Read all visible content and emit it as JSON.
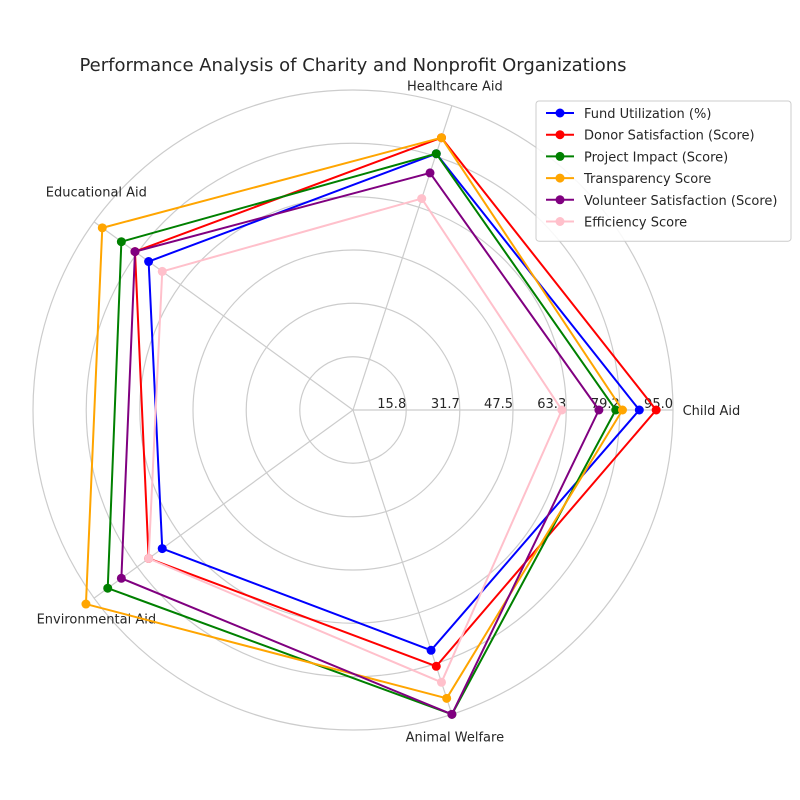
{
  "chart_data": {
    "type": "radar",
    "title": "Performance Analysis of Charity and Nonprofit Organizations",
    "categories": [
      "Child Aid",
      "Healthcare Aid",
      "Educational Aid",
      "Environmental Aid",
      "Animal Welfare"
    ],
    "rlim": [
      0,
      95.0
    ],
    "radial_ticks": [
      15.8,
      31.7,
      47.5,
      63.3,
      79.2,
      95.0
    ],
    "radial_tick_labels": [
      "15.8",
      "31.7",
      "47.5",
      "63.3",
      "79.2",
      "95.0"
    ],
    "grid": true,
    "legend_position": "top-right",
    "series": [
      {
        "name": "Fund Utilization (%)",
        "color": "#0000ff",
        "values": [
          85,
          80,
          75,
          70,
          75
        ]
      },
      {
        "name": "Donor Satisfaction (Score)",
        "color": "#ff0000",
        "values": [
          90,
          85,
          80,
          75,
          80
        ]
      },
      {
        "name": "Project Impact (Score)",
        "color": "#008000",
        "values": [
          78,
          80,
          85,
          90,
          95
        ]
      },
      {
        "name": "Transparency Score",
        "color": "#ffa500",
        "values": [
          80,
          85,
          92,
          98,
          90
        ]
      },
      {
        "name": "Volunteer Satisfaction (Score)",
        "color": "#800080",
        "values": [
          73,
          74,
          80,
          85,
          95
        ]
      },
      {
        "name": "Efficiency Score",
        "color": "#ffc0cb",
        "values": [
          62,
          66,
          70,
          75,
          85
        ]
      }
    ]
  }
}
